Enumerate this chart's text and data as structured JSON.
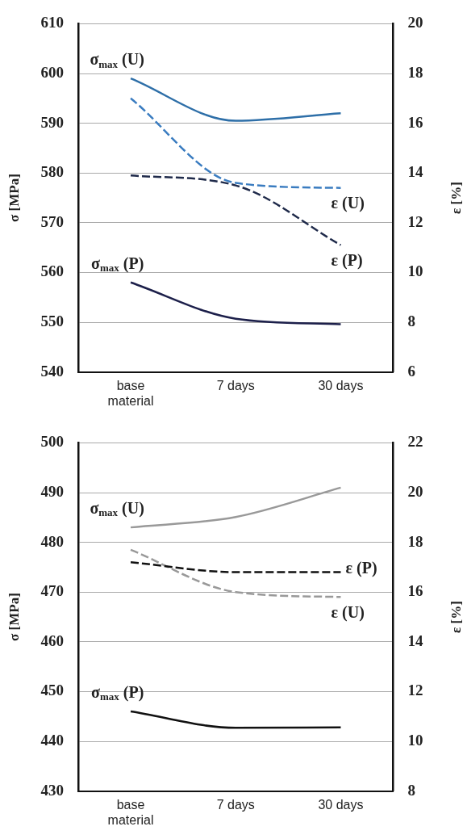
{
  "chart_data": [
    {
      "type": "line",
      "categories": [
        "base material",
        "7 days",
        "30 days"
      ],
      "ylabel": "σ [MPa]",
      "y2label": "ε [%]",
      "ylim": [
        540,
        610
      ],
      "yticks": [
        540,
        550,
        560,
        570,
        580,
        590,
        600,
        610
      ],
      "y2lim": [
        6,
        20
      ],
      "y2ticks": [
        6,
        8,
        10,
        12,
        14,
        16,
        18,
        20
      ],
      "grid": "y",
      "marker": "none",
      "series": [
        {
          "name": "σ$_{max}$ (U)",
          "color": "#2e6fa8",
          "values": [
            599,
            590.5,
            592
          ],
          "line_style": "solid"
        },
        {
          "name": "ε (U)",
          "color": "#3a7cc0",
          "values": [
            17,
            13.6,
            13.4
          ],
          "axis": "y2",
          "line_style": "dashed"
        },
        {
          "name": "ε (P)",
          "color": "#1f2a4a",
          "values": [
            13.9,
            13.5,
            11.1
          ],
          "axis": "y2",
          "line_style": "dashed"
        },
        {
          "name": "σ$_{max}$ (P)",
          "color": "#1c1f4a",
          "values": [
            558,
            550.7,
            549.6
          ],
          "line_style": "solid"
        }
      ]
    },
    {
      "type": "line",
      "categories": [
        "base material",
        "7 days",
        "30 days"
      ],
      "ylabel": "σ [MPa]",
      "y2label": "ε [%]",
      "ylim": [
        430,
        500
      ],
      "yticks": [
        430,
        440,
        450,
        460,
        470,
        480,
        490,
        500
      ],
      "y2lim": [
        8,
        22
      ],
      "y2ticks": [
        8,
        10,
        12,
        14,
        16,
        18,
        20,
        22
      ],
      "grid": "y",
      "marker": "none",
      "series": [
        {
          "name": "σ$_{max}$ (U)",
          "color": "#999999",
          "values": [
            483,
            485.1,
            491
          ],
          "line_style": "solid"
        },
        {
          "name": "ε (P)",
          "color": "#111111",
          "values": [
            17.2,
            16.8,
            16.8
          ],
          "axis": "y2",
          "line_style": "dashed"
        },
        {
          "name": "ε (U)",
          "color": "#999999",
          "values": [
            17.7,
            16,
            15.8
          ],
          "axis": "y2",
          "line_style": "dashed"
        },
        {
          "name": "σ$_{max}$ (P)",
          "color": "#111111",
          "values": [
            446,
            442.7,
            442.8
          ],
          "line_style": "solid"
        }
      ]
    }
  ]
}
